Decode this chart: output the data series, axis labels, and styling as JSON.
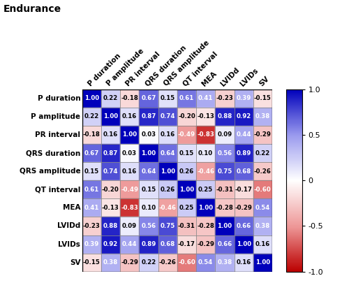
{
  "title": "Endurance",
  "labels": [
    "P duration",
    "P amplitude",
    "PR interval",
    "QRS duration",
    "QRS amplitude",
    "QT interval",
    "MEA",
    "LVIDd",
    "LVIDs",
    "SV"
  ],
  "matrix": [
    [
      1.0,
      0.22,
      -0.18,
      0.67,
      0.15,
      0.61,
      0.41,
      -0.23,
      0.39,
      -0.15
    ],
    [
      0.22,
      1.0,
      0.16,
      0.87,
      0.74,
      -0.2,
      -0.13,
      0.88,
      0.92,
      0.38
    ],
    [
      -0.18,
      0.16,
      1.0,
      0.03,
      0.16,
      -0.49,
      -0.83,
      0.09,
      0.44,
      -0.29
    ],
    [
      0.67,
      0.87,
      0.03,
      1.0,
      0.64,
      0.15,
      0.1,
      0.56,
      0.89,
      0.22
    ],
    [
      0.15,
      0.74,
      0.16,
      0.64,
      1.0,
      0.26,
      -0.46,
      0.75,
      0.68,
      -0.26
    ],
    [
      0.61,
      -0.2,
      -0.49,
      0.15,
      0.26,
      1.0,
      0.25,
      -0.31,
      -0.17,
      -0.6
    ],
    [
      0.41,
      -0.13,
      -0.83,
      0.1,
      -0.46,
      0.25,
      1.0,
      -0.28,
      -0.29,
      0.54
    ],
    [
      -0.23,
      0.88,
      0.09,
      0.56,
      0.75,
      -0.31,
      -0.28,
      1.0,
      0.66,
      0.38
    ],
    [
      0.39,
      0.92,
      0.44,
      0.89,
      0.68,
      -0.17,
      -0.29,
      0.66,
      1.0,
      0.16
    ],
    [
      -0.15,
      0.38,
      -0.29,
      0.22,
      -0.26,
      -0.6,
      0.54,
      0.38,
      0.16,
      1.0
    ]
  ],
  "colorbar_ticks": [
    1.0,
    0.5,
    0,
    -0.5,
    -1.0
  ],
  "text_color_threshold": 0.38,
  "grid_color": "#888888",
  "title_fontsize": 10,
  "label_fontsize": 7.5,
  "cell_fontsize": 6.2,
  "colorbar_label_fontsize": 8,
  "cmap_colors": [
    [
      0.0,
      "#bb0000"
    ],
    [
      0.25,
      "#ee9999"
    ],
    [
      0.5,
      "#ffffff"
    ],
    [
      0.75,
      "#9999ee"
    ],
    [
      1.0,
      "#0000bb"
    ]
  ]
}
